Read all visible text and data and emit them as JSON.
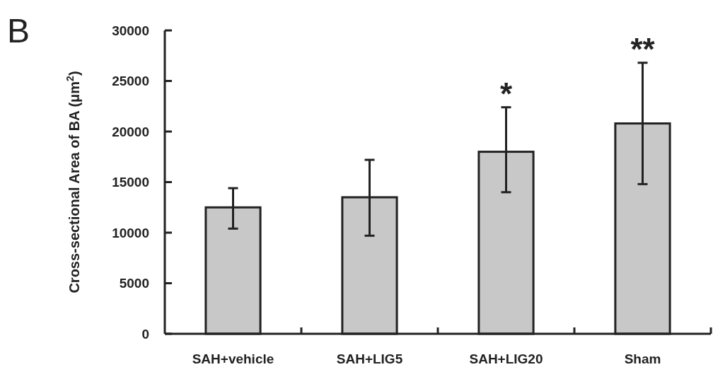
{
  "chart_data": {
    "type": "bar",
    "ylabel": "Cross-sectional Area of BA (μm$^{2}$)",
    "categories": [
      "SAH+vehicle",
      "SAH+LIG5",
      "SAH+LIG20",
      "Sham"
    ],
    "values": [
      12500,
      13500,
      18000,
      20800
    ],
    "errors": [
      [
        10400,
        14400
      ],
      [
        9700,
        17200
      ],
      [
        14000,
        22400
      ],
      [
        14800,
        26800
      ]
    ],
    "color": "#c8c8c8",
    "ylim": [
      0,
      30000
    ],
    "yticks": [
      0,
      5000,
      10000,
      15000,
      20000,
      25000,
      30000
    ],
    "grid": false,
    "annotations": [
      "B",
      {
        "text": "*",
        "x": "SAH+LIG20",
        "y": 22400
      },
      {
        "text": "**",
        "x": "Sham",
        "y": 26800
      }
    ]
  }
}
